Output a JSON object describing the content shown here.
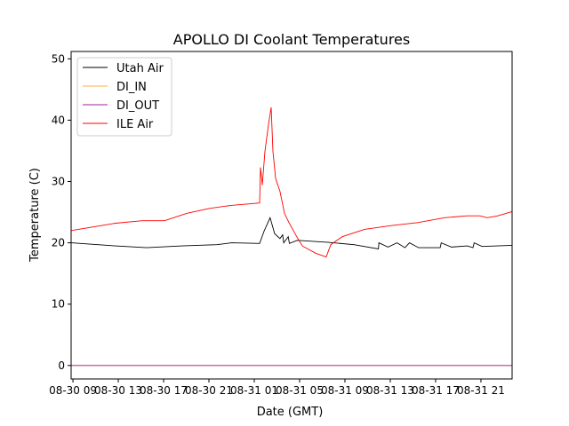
{
  "chart_data": {
    "type": "line",
    "title": "APOLLO DI Coolant Temperatures",
    "xlabel": "Date (GMT)",
    "ylabel": "Temperature (C)",
    "x_unit": "hours since 08-30 00:00 GMT",
    "xlim": [
      8.84,
      47.75
    ],
    "ylim": [
      -2.2,
      51.2
    ],
    "grid": false,
    "legend_placement": "top-left",
    "x_ticks": [
      {
        "value": 9,
        "label": "08-30 09"
      },
      {
        "value": 13,
        "label": "08-30 13"
      },
      {
        "value": 17,
        "label": "08-30 17"
      },
      {
        "value": 21,
        "label": "08-30 21"
      },
      {
        "value": 25,
        "label": "08-31 01"
      },
      {
        "value": 29,
        "label": "08-31 05"
      },
      {
        "value": 33,
        "label": "08-31 09"
      },
      {
        "value": 37,
        "label": "08-31 13"
      },
      {
        "value": 41,
        "label": "08-31 17"
      },
      {
        "value": 45,
        "label": "08-31 21"
      }
    ],
    "y_ticks": [
      0,
      10,
      20,
      30,
      40,
      50
    ],
    "series": [
      {
        "name": "Utah Air",
        "color": "#000000",
        "x": [
          8.84,
          12.76,
          15.5,
          18.6,
          21.7,
          23.0,
          25.47,
          25.86,
          26.4,
          26.8,
          27.27,
          27.5,
          27.6,
          28.0,
          28.1,
          28.8,
          31.4,
          33.8,
          35.95,
          36.0,
          36.8,
          37.6,
          38.3,
          38.7,
          39.5,
          41.4,
          41.5,
          42.4,
          43.8,
          44.3,
          44.4,
          45.1,
          47.75
        ],
        "y": [
          20.0,
          19.5,
          19.2,
          19.5,
          19.7,
          20.0,
          19.9,
          21.9,
          24.1,
          21.5,
          20.7,
          21.3,
          20.0,
          21.0,
          19.9,
          20.4,
          20.1,
          19.7,
          19.0,
          20.0,
          19.3,
          20.0,
          19.2,
          20.0,
          19.2,
          19.2,
          20.0,
          19.3,
          19.5,
          19.2,
          20.0,
          19.4,
          19.6
        ]
      },
      {
        "name": "DI_IN",
        "color": "#f5b041",
        "x": [
          8.84,
          47.75
        ],
        "y": [
          0,
          0
        ]
      },
      {
        "name": "DI_OUT",
        "color": "#a020a0",
        "x": [
          8.84,
          47.75
        ],
        "y": [
          0,
          0
        ]
      },
      {
        "name": "ILE Air",
        "color": "#ff0000",
        "x": [
          8.84,
          12.76,
          15.12,
          17.08,
          19.04,
          21.0,
          22.96,
          25.47,
          25.55,
          25.71,
          25.94,
          26.25,
          26.49,
          26.65,
          26.88,
          27.27,
          27.67,
          28.06,
          28.69,
          29.24,
          30.41,
          31.35,
          31.75,
          32.76,
          34.73,
          37.08,
          39.43,
          41.78,
          43.75,
          44.92,
          45.55,
          46.49,
          47.75
        ],
        "y": [
          22.0,
          23.2,
          23.6,
          23.6,
          24.8,
          25.6,
          26.1,
          26.5,
          32.3,
          29.4,
          34.9,
          39.2,
          42.1,
          34.9,
          30.5,
          28.4,
          24.8,
          23.3,
          21.2,
          19.5,
          18.3,
          17.7,
          19.7,
          21.0,
          22.2,
          22.8,
          23.3,
          24.1,
          24.4,
          24.4,
          24.1,
          24.4,
          25.1
        ]
      }
    ]
  }
}
